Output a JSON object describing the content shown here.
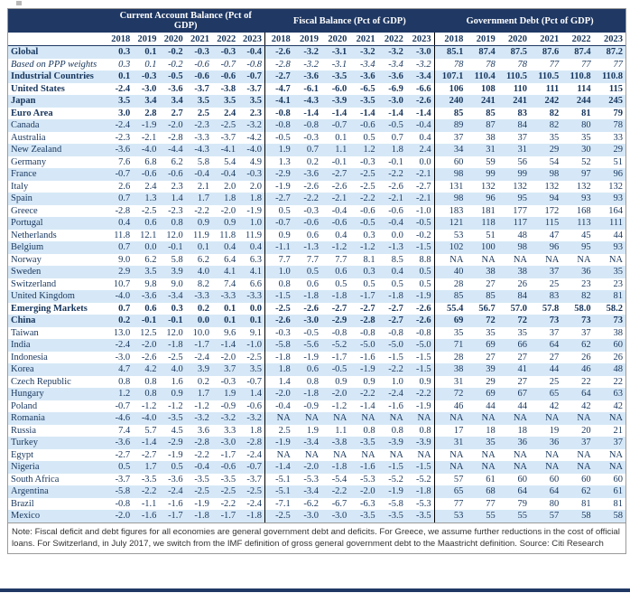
{
  "note": "Note: Fiscal deficit and debt figures for all economies are general government debt and deficits. For Greece, we assume further reductions in the cost of official loans. For Switzerland, in July 2017, we switch from the IMF definition of gross general government debt to the Maastricht definition. Source: Citi Research",
  "colors": {
    "header_bg": "#1F3864",
    "stripe": "#D6E8F7",
    "text": "#17365D",
    "divider": "#000000",
    "frame_border": "#9A9A9A"
  },
  "chart_data": {
    "type": "table",
    "sections": [
      {
        "label": "Current Account Balance (Pct of GDP)",
        "years": [
          "2018",
          "2019",
          "2020",
          "2021",
          "2022",
          "2023"
        ]
      },
      {
        "label": "Fiscal Balance (Pct of GDP)",
        "years": [
          "2018",
          "2019",
          "2020",
          "2021",
          "2022",
          "2023"
        ]
      },
      {
        "label": "Government Debt (Pct of GDP)",
        "years": [
          "2018",
          "2019",
          "2020",
          "2021",
          "2022",
          "2023"
        ]
      }
    ],
    "rows": [
      {
        "name": "Global",
        "style": "b",
        "ca": [
          "0.3",
          "0.1",
          "-0.2",
          "-0.3",
          "-0.3",
          "-0.4"
        ],
        "fiscal": [
          "-2.6",
          "-3.2",
          "-3.1",
          "-3.2",
          "-3.2",
          "-3.0"
        ],
        "debt": [
          "85.1",
          "87.4",
          "87.5",
          "87.6",
          "87.4",
          "87.2"
        ]
      },
      {
        "name": "Based on PPP weights",
        "style": "i",
        "ca": [
          "0.3",
          "0.1",
          "-0.2",
          "-0.6",
          "-0.7",
          "-0.8"
        ],
        "fiscal": [
          "-2.8",
          "-3.2",
          "-3.1",
          "-3.4",
          "-3.4",
          "-3.2"
        ],
        "debt": [
          "78",
          "78",
          "78",
          "77",
          "77",
          "77"
        ]
      },
      {
        "name": "Industrial Countries",
        "style": "b",
        "ca": [
          "0.1",
          "-0.3",
          "-0.5",
          "-0.6",
          "-0.6",
          "-0.7"
        ],
        "fiscal": [
          "-2.7",
          "-3.6",
          "-3.5",
          "-3.6",
          "-3.6",
          "-3.4"
        ],
        "debt": [
          "107.1",
          "110.4",
          "110.5",
          "110.5",
          "110.8",
          "110.8"
        ]
      },
      {
        "name": "United States",
        "style": "b",
        "ca": [
          "-2.4",
          "-3.0",
          "-3.6",
          "-3.7",
          "-3.8",
          "-3.7"
        ],
        "fiscal": [
          "-4.7",
          "-6.1",
          "-6.0",
          "-6.5",
          "-6.9",
          "-6.6"
        ],
        "debt": [
          "106",
          "108",
          "110",
          "111",
          "114",
          "115"
        ]
      },
      {
        "name": "Japan",
        "style": "b",
        "ca": [
          "3.5",
          "3.4",
          "3.4",
          "3.5",
          "3.5",
          "3.5"
        ],
        "fiscal": [
          "-4.1",
          "-4.3",
          "-3.9",
          "-3.5",
          "-3.0",
          "-2.6"
        ],
        "debt": [
          "240",
          "241",
          "241",
          "242",
          "244",
          "245"
        ]
      },
      {
        "name": "Euro Area",
        "style": "b",
        "ca": [
          "3.0",
          "2.8",
          "2.7",
          "2.5",
          "2.4",
          "2.3"
        ],
        "fiscal": [
          "-0.8",
          "-1.4",
          "-1.4",
          "-1.4",
          "-1.4",
          "-1.4"
        ],
        "debt": [
          "85",
          "85",
          "83",
          "82",
          "81",
          "79"
        ]
      },
      {
        "name": "Canada",
        "style": "n",
        "ca": [
          "-2.4",
          "-1.9",
          "-2.0",
          "-2.3",
          "-2.5",
          "-3.2"
        ],
        "fiscal": [
          "-0.8",
          "-0.8",
          "-0.7",
          "-0.6",
          "-0.5",
          "-0.4"
        ],
        "debt": [
          "89",
          "87",
          "84",
          "82",
          "80",
          "78"
        ]
      },
      {
        "name": "Australia",
        "style": "n",
        "ca": [
          "-2.3",
          "-2.1",
          "-2.8",
          "-3.3",
          "-3.7",
          "-4.2"
        ],
        "fiscal": [
          "-0.5",
          "-0.3",
          "0.1",
          "0.5",
          "0.7",
          "0.4"
        ],
        "debt": [
          "37",
          "38",
          "37",
          "35",
          "35",
          "33"
        ]
      },
      {
        "name": "New Zealand",
        "style": "n",
        "ca": [
          "-3.6",
          "-4.0",
          "-4.4",
          "-4.3",
          "-4.1",
          "-4.0"
        ],
        "fiscal": [
          "1.9",
          "0.7",
          "1.1",
          "1.2",
          "1.8",
          "2.4"
        ],
        "debt": [
          "34",
          "31",
          "31",
          "29",
          "30",
          "29"
        ]
      },
      {
        "name": "Germany",
        "style": "n",
        "ca": [
          "7.6",
          "6.8",
          "6.2",
          "5.8",
          "5.4",
          "4.9"
        ],
        "fiscal": [
          "1.3",
          "0.2",
          "-0.1",
          "-0.3",
          "-0.1",
          "0.0"
        ],
        "debt": [
          "60",
          "59",
          "56",
          "54",
          "52",
          "51"
        ]
      },
      {
        "name": "France",
        "style": "n",
        "ca": [
          "-0.7",
          "-0.6",
          "-0.6",
          "-0.4",
          "-0.4",
          "-0.3"
        ],
        "fiscal": [
          "-2.9",
          "-3.6",
          "-2.7",
          "-2.5",
          "-2.2",
          "-2.1"
        ],
        "debt": [
          "98",
          "99",
          "99",
          "98",
          "97",
          "96"
        ]
      },
      {
        "name": "Italy",
        "style": "n",
        "ca": [
          "2.6",
          "2.4",
          "2.3",
          "2.1",
          "2.0",
          "2.0"
        ],
        "fiscal": [
          "-1.9",
          "-2.6",
          "-2.6",
          "-2.5",
          "-2.6",
          "-2.7"
        ],
        "debt": [
          "131",
          "132",
          "132",
          "132",
          "132",
          "132"
        ]
      },
      {
        "name": "Spain",
        "style": "n",
        "ca": [
          "0.7",
          "1.3",
          "1.4",
          "1.7",
          "1.8",
          "1.8"
        ],
        "fiscal": [
          "-2.7",
          "-2.2",
          "-2.1",
          "-2.2",
          "-2.1",
          "-2.1"
        ],
        "debt": [
          "98",
          "96",
          "95",
          "94",
          "93",
          "93"
        ]
      },
      {
        "name": "Greece",
        "style": "n",
        "ca": [
          "-2.8",
          "-2.5",
          "-2.3",
          "-2.2",
          "-2.0",
          "-1.9"
        ],
        "fiscal": [
          "0.5",
          "-0.3",
          "-0.4",
          "-0.6",
          "-0.6",
          "-1.0"
        ],
        "debt": [
          "183",
          "181",
          "177",
          "172",
          "168",
          "164"
        ]
      },
      {
        "name": "Portugal",
        "style": "n",
        "ca": [
          "0.4",
          "0.6",
          "0.8",
          "0.9",
          "0.9",
          "1.0"
        ],
        "fiscal": [
          "-0.7",
          "-0.6",
          "-0.6",
          "-0.5",
          "-0.4",
          "-0.5"
        ],
        "debt": [
          "121",
          "118",
          "117",
          "115",
          "113",
          "111"
        ]
      },
      {
        "name": "Netherlands",
        "style": "n",
        "ca": [
          "11.8",
          "12.1",
          "12.0",
          "11.9",
          "11.8",
          "11.9"
        ],
        "fiscal": [
          "0.9",
          "0.6",
          "0.4",
          "0.3",
          "0.0",
          "-0.2"
        ],
        "debt": [
          "53",
          "51",
          "48",
          "47",
          "45",
          "44"
        ]
      },
      {
        "name": "Belgium",
        "style": "n",
        "ca": [
          "0.7",
          "0.0",
          "-0.1",
          "0.1",
          "0.4",
          "0.4"
        ],
        "fiscal": [
          "-1.1",
          "-1.3",
          "-1.2",
          "-1.2",
          "-1.3",
          "-1.5"
        ],
        "debt": [
          "102",
          "100",
          "98",
          "96",
          "95",
          "93"
        ]
      },
      {
        "name": "Norway",
        "style": "n",
        "ca": [
          "9.0",
          "6.2",
          "5.8",
          "6.2",
          "6.4",
          "6.3"
        ],
        "fiscal": [
          "7.7",
          "7.7",
          "7.7",
          "8.1",
          "8.5",
          "8.8"
        ],
        "debt": [
          "NA",
          "NA",
          "NA",
          "NA",
          "NA",
          "NA"
        ]
      },
      {
        "name": "Sweden",
        "style": "n",
        "ca": [
          "2.9",
          "3.5",
          "3.9",
          "4.0",
          "4.1",
          "4.1"
        ],
        "fiscal": [
          "1.0",
          "0.5",
          "0.6",
          "0.3",
          "0.4",
          "0.5"
        ],
        "debt": [
          "40",
          "38",
          "38",
          "37",
          "36",
          "35"
        ]
      },
      {
        "name": "Switzerland",
        "style": "n",
        "ca": [
          "10.7",
          "9.8",
          "9.0",
          "8.2",
          "7.4",
          "6.6"
        ],
        "fiscal": [
          "0.8",
          "0.6",
          "0.5",
          "0.5",
          "0.5",
          "0.5"
        ],
        "debt": [
          "28",
          "27",
          "26",
          "25",
          "23",
          "23"
        ]
      },
      {
        "name": "United Kingdom",
        "style": "n",
        "ca": [
          "-4.0",
          "-3.6",
          "-3.4",
          "-3.3",
          "-3.3",
          "-3.3"
        ],
        "fiscal": [
          "-1.5",
          "-1.8",
          "-1.8",
          "-1.7",
          "-1.8",
          "-1.9"
        ],
        "debt": [
          "85",
          "85",
          "84",
          "83",
          "82",
          "81"
        ]
      },
      {
        "name": "Emerging Markets",
        "style": "b",
        "ca": [
          "0.7",
          "0.6",
          "0.3",
          "0.2",
          "0.1",
          "0.0"
        ],
        "fiscal": [
          "-2.5",
          "-2.6",
          "-2.7",
          "-2.7",
          "-2.7",
          "-2.6"
        ],
        "debt": [
          "55.4",
          "56.7",
          "57.0",
          "57.8",
          "58.0",
          "58.2"
        ]
      },
      {
        "name": "China",
        "style": "b",
        "ca": [
          "0.2",
          "-0.1",
          "-0.1",
          "0.0",
          "0.1",
          "0.1"
        ],
        "fiscal": [
          "-2.6",
          "-3.0",
          "-2.9",
          "-2.8",
          "-2.7",
          "-2.6"
        ],
        "debt": [
          "69",
          "72",
          "72",
          "73",
          "73",
          "73"
        ]
      },
      {
        "name": "Taiwan",
        "style": "n",
        "ca": [
          "13.0",
          "12.5",
          "12.0",
          "10.0",
          "9.6",
          "9.1"
        ],
        "fiscal": [
          "-0.3",
          "-0.5",
          "-0.8",
          "-0.8",
          "-0.8",
          "-0.8"
        ],
        "debt": [
          "35",
          "35",
          "35",
          "37",
          "37",
          "38"
        ]
      },
      {
        "name": "India",
        "style": "n",
        "ca": [
          "-2.4",
          "-2.0",
          "-1.8",
          "-1.7",
          "-1.4",
          "-1.0"
        ],
        "fiscal": [
          "-5.8",
          "-5.6",
          "-5.2",
          "-5.0",
          "-5.0",
          "-5.0"
        ],
        "debt": [
          "71",
          "69",
          "66",
          "64",
          "62",
          "60"
        ]
      },
      {
        "name": "Indonesia",
        "style": "n",
        "ca": [
          "-3.0",
          "-2.6",
          "-2.5",
          "-2.4",
          "-2.0",
          "-2.5"
        ],
        "fiscal": [
          "-1.8",
          "-1.9",
          "-1.7",
          "-1.6",
          "-1.5",
          "-1.5"
        ],
        "debt": [
          "28",
          "27",
          "27",
          "27",
          "26",
          "26"
        ]
      },
      {
        "name": "Korea",
        "style": "n",
        "ca": [
          "4.7",
          "4.2",
          "4.0",
          "3.9",
          "3.7",
          "3.5"
        ],
        "fiscal": [
          "1.8",
          "0.6",
          "-0.5",
          "-1.9",
          "-2.2",
          "-1.5"
        ],
        "debt": [
          "38",
          "39",
          "41",
          "44",
          "46",
          "48"
        ]
      },
      {
        "name": "Czech Republic",
        "style": "n",
        "ca": [
          "0.8",
          "0.8",
          "1.6",
          "0.2",
          "-0.3",
          "-0.7"
        ],
        "fiscal": [
          "1.4",
          "0.8",
          "0.9",
          "0.9",
          "1.0",
          "0.9"
        ],
        "debt": [
          "31",
          "29",
          "27",
          "25",
          "22",
          "22"
        ]
      },
      {
        "name": "Hungary",
        "style": "n",
        "ca": [
          "1.2",
          "0.8",
          "0.9",
          "1.7",
          "1.9",
          "1.4"
        ],
        "fiscal": [
          "-2.0",
          "-1.8",
          "-2.0",
          "-2.2",
          "-2.4",
          "-2.2"
        ],
        "debt": [
          "72",
          "69",
          "67",
          "65",
          "64",
          "63"
        ]
      },
      {
        "name": "Poland",
        "style": "n",
        "ca": [
          "-0.7",
          "-1.2",
          "-1.2",
          "-1.2",
          "-0.9",
          "-0.6"
        ],
        "fiscal": [
          "-0.4",
          "-0.9",
          "-1.2",
          "-1.4",
          "-1.6",
          "-1.9"
        ],
        "debt": [
          "46",
          "44",
          "44",
          "42",
          "42",
          "42"
        ]
      },
      {
        "name": "Romania",
        "style": "n",
        "ca": [
          "-4.6",
          "-4.0",
          "-3.5",
          "-3.2",
          "-3.2",
          "-3.2"
        ],
        "fiscal": [
          "NA",
          "NA",
          "NA",
          "NA",
          "NA",
          "NA"
        ],
        "debt": [
          "NA",
          "NA",
          "NA",
          "NA",
          "NA",
          "NA"
        ]
      },
      {
        "name": "Russia",
        "style": "n",
        "ca": [
          "7.4",
          "5.7",
          "4.5",
          "3.6",
          "3.3",
          "1.8"
        ],
        "fiscal": [
          "2.5",
          "1.9",
          "1.1",
          "0.8",
          "0.8",
          "0.8"
        ],
        "debt": [
          "17",
          "18",
          "18",
          "19",
          "20",
          "21"
        ]
      },
      {
        "name": "Turkey",
        "style": "n",
        "ca": [
          "-3.6",
          "-1.4",
          "-2.9",
          "-2.8",
          "-3.0",
          "-2.8"
        ],
        "fiscal": [
          "-1.9",
          "-3.4",
          "-3.8",
          "-3.5",
          "-3.9",
          "-3.9"
        ],
        "debt": [
          "31",
          "35",
          "36",
          "36",
          "37",
          "37"
        ]
      },
      {
        "name": "Egypt",
        "style": "n",
        "ca": [
          "-2.7",
          "-2.7",
          "-1.9",
          "-2.2",
          "-1.7",
          "-2.4"
        ],
        "fiscal": [
          "NA",
          "NA",
          "NA",
          "NA",
          "NA",
          "NA"
        ],
        "debt": [
          "NA",
          "NA",
          "NA",
          "NA",
          "NA",
          "NA"
        ]
      },
      {
        "name": "Nigeria",
        "style": "n",
        "ca": [
          "0.5",
          "1.7",
          "0.5",
          "-0.4",
          "-0.6",
          "-0.7"
        ],
        "fiscal": [
          "-1.4",
          "-2.0",
          "-1.8",
          "-1.6",
          "-1.5",
          "-1.5"
        ],
        "debt": [
          "NA",
          "NA",
          "NA",
          "NA",
          "NA",
          "NA"
        ]
      },
      {
        "name": "South Africa",
        "style": "n",
        "ca": [
          "-3.7",
          "-3.5",
          "-3.6",
          "-3.5",
          "-3.5",
          "-3.7"
        ],
        "fiscal": [
          "-5.1",
          "-5.3",
          "-5.4",
          "-5.3",
          "-5.2",
          "-5.2"
        ],
        "debt": [
          "57",
          "61",
          "60",
          "60",
          "60",
          "60"
        ]
      },
      {
        "name": "Argentina",
        "style": "n",
        "ca": [
          "-5.8",
          "-2.2",
          "-2.4",
          "-2.5",
          "-2.5",
          "-2.5"
        ],
        "fiscal": [
          "-5.1",
          "-3.4",
          "-2.2",
          "-2.0",
          "-1.9",
          "-1.8"
        ],
        "debt": [
          "65",
          "68",
          "64",
          "64",
          "62",
          "61"
        ]
      },
      {
        "name": "Brazil",
        "style": "n",
        "ca": [
          "-0.8",
          "-1.1",
          "-1.6",
          "-1.9",
          "-2.2",
          "-2.4"
        ],
        "fiscal": [
          "-7.1",
          "-6.2",
          "-6.7",
          "-6.3",
          "-5.8",
          "-5.3"
        ],
        "debt": [
          "77",
          "77",
          "79",
          "80",
          "81",
          "81"
        ]
      },
      {
        "name": "Mexico",
        "style": "n",
        "ca": [
          "-2.0",
          "-1.6",
          "-1.7",
          "-1.8",
          "-1.7",
          "-1.8"
        ],
        "fiscal": [
          "-2.5",
          "-3.0",
          "-3.0",
          "-3.5",
          "-3.5",
          "-3.5"
        ],
        "debt": [
          "53",
          "55",
          "55",
          "57",
          "58",
          "58"
        ]
      }
    ]
  }
}
